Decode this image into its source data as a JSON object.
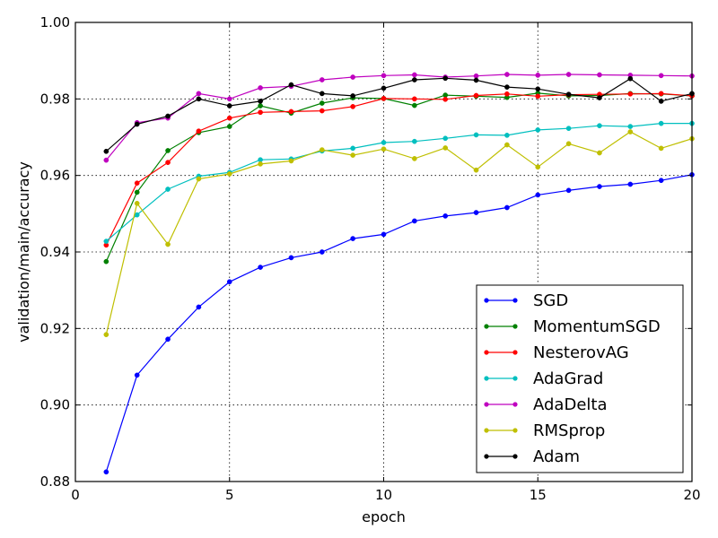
{
  "chart_data": {
    "type": "line",
    "title": "",
    "xlabel": "epoch",
    "ylabel": "validation/main/accuracy",
    "xlim": [
      0,
      20
    ],
    "ylim": [
      0.88,
      1.0
    ],
    "xticks": [
      0,
      5,
      10,
      15,
      20
    ],
    "xtick_labels": [
      "0",
      "5",
      "10",
      "15",
      "20"
    ],
    "yticks": [
      0.88,
      0.9,
      0.92,
      0.94,
      0.96,
      0.98,
      1.0
    ],
    "ytick_labels": [
      "0.88",
      "0.90",
      "0.92",
      "0.94",
      "0.96",
      "0.98",
      "1.00"
    ],
    "grid": true,
    "legend_position": "lower-right",
    "x": [
      1,
      2,
      3,
      4,
      5,
      6,
      7,
      8,
      9,
      10,
      11,
      12,
      13,
      14,
      15,
      16,
      17,
      18,
      19,
      20
    ],
    "series": [
      {
        "name": "SGD",
        "color": "#0000ff",
        "values": [
          0.8825,
          0.9078,
          0.9172,
          0.9256,
          0.9322,
          0.936,
          0.9385,
          0.94,
          0.9435,
          0.9446,
          0.9481,
          0.9494,
          0.9503,
          0.9516,
          0.9549,
          0.9561,
          0.9571,
          0.9577,
          0.9587,
          0.9602
        ]
      },
      {
        "name": "MomentumSGD",
        "color": "#008000",
        "values": [
          0.9375,
          0.9556,
          0.9665,
          0.9712,
          0.9728,
          0.9782,
          0.9763,
          0.9789,
          0.9803,
          0.9801,
          0.9783,
          0.981,
          0.9807,
          0.9804,
          0.9815,
          0.9808,
          0.9809,
          0.9814,
          0.9813,
          0.9808
        ]
      },
      {
        "name": "NesterovAG",
        "color": "#ff0000",
        "values": [
          0.9418,
          0.958,
          0.9634,
          0.9716,
          0.975,
          0.9765,
          0.9767,
          0.9769,
          0.978,
          0.9801,
          0.98,
          0.9799,
          0.9809,
          0.9813,
          0.9807,
          0.9811,
          0.9812,
          0.9813,
          0.9814,
          0.9808
        ]
      },
      {
        "name": "AdaGrad",
        "color": "#00bfbf",
        "values": [
          0.9428,
          0.9497,
          0.9564,
          0.9598,
          0.9608,
          0.9641,
          0.9643,
          0.9664,
          0.9671,
          0.9686,
          0.9689,
          0.9697,
          0.9706,
          0.9705,
          0.9719,
          0.9723,
          0.973,
          0.9728,
          0.9736,
          0.9736
        ]
      },
      {
        "name": "AdaDelta",
        "color": "#bf00bf",
        "values": [
          0.964,
          0.9738,
          0.975,
          0.9814,
          0.98,
          0.9829,
          0.9833,
          0.985,
          0.9857,
          0.9861,
          0.9863,
          0.9857,
          0.986,
          0.9864,
          0.9862,
          0.9864,
          0.9863,
          0.9862,
          0.9861,
          0.986
        ]
      },
      {
        "name": "RMSprop",
        "color": "#bfbf00",
        "values": [
          0.9184,
          0.9527,
          0.942,
          0.9591,
          0.9604,
          0.963,
          0.9638,
          0.9667,
          0.9653,
          0.9669,
          0.9644,
          0.9672,
          0.9614,
          0.968,
          0.9622,
          0.9683,
          0.9659,
          0.9714,
          0.9671,
          0.9696
        ]
      },
      {
        "name": "Adam",
        "color": "#000000",
        "values": [
          0.9663,
          0.9734,
          0.9755,
          0.98,
          0.9782,
          0.9794,
          0.9837,
          0.9814,
          0.9808,
          0.9828,
          0.985,
          0.9854,
          0.9849,
          0.9831,
          0.9826,
          0.9812,
          0.9803,
          0.9853,
          0.9794,
          0.9814
        ]
      }
    ]
  }
}
